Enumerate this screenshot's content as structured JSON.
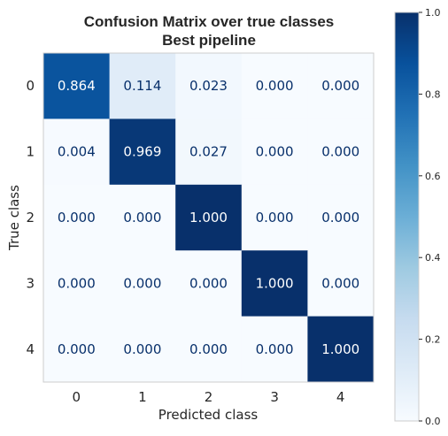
{
  "chart_data": {
    "type": "heatmap",
    "title_line1": "Confusion Matrix over true classes",
    "title_line2": "Best pipeline",
    "xlabel": "Predicted class",
    "ylabel": "True class",
    "x_categories": [
      "0",
      "1",
      "2",
      "3",
      "4"
    ],
    "y_categories": [
      "0",
      "1",
      "2",
      "3",
      "4"
    ],
    "values": [
      [
        0.864,
        0.114,
        0.023,
        0.0,
        0.0
      ],
      [
        0.004,
        0.969,
        0.027,
        0.0,
        0.0
      ],
      [
        0.0,
        0.0,
        1.0,
        0.0,
        0.0
      ],
      [
        0.0,
        0.0,
        0.0,
        1.0,
        0.0
      ],
      [
        0.0,
        0.0,
        0.0,
        0.0,
        1.0
      ]
    ],
    "value_labels": [
      [
        "0.864",
        "0.114",
        "0.023",
        "0.000",
        "0.000"
      ],
      [
        "0.004",
        "0.969",
        "0.027",
        "0.000",
        "0.000"
      ],
      [
        "0.000",
        "0.000",
        "1.000",
        "0.000",
        "0.000"
      ],
      [
        "0.000",
        "0.000",
        "0.000",
        "1.000",
        "0.000"
      ],
      [
        "0.000",
        "0.000",
        "0.000",
        "0.000",
        "1.000"
      ]
    ],
    "colorbar": {
      "range": [
        0.0,
        1.0
      ],
      "ticks": [
        "0.0",
        "0.2",
        "0.4",
        "0.6",
        "0.8",
        "1.0"
      ],
      "colormap": "Blues"
    },
    "grid": false
  }
}
